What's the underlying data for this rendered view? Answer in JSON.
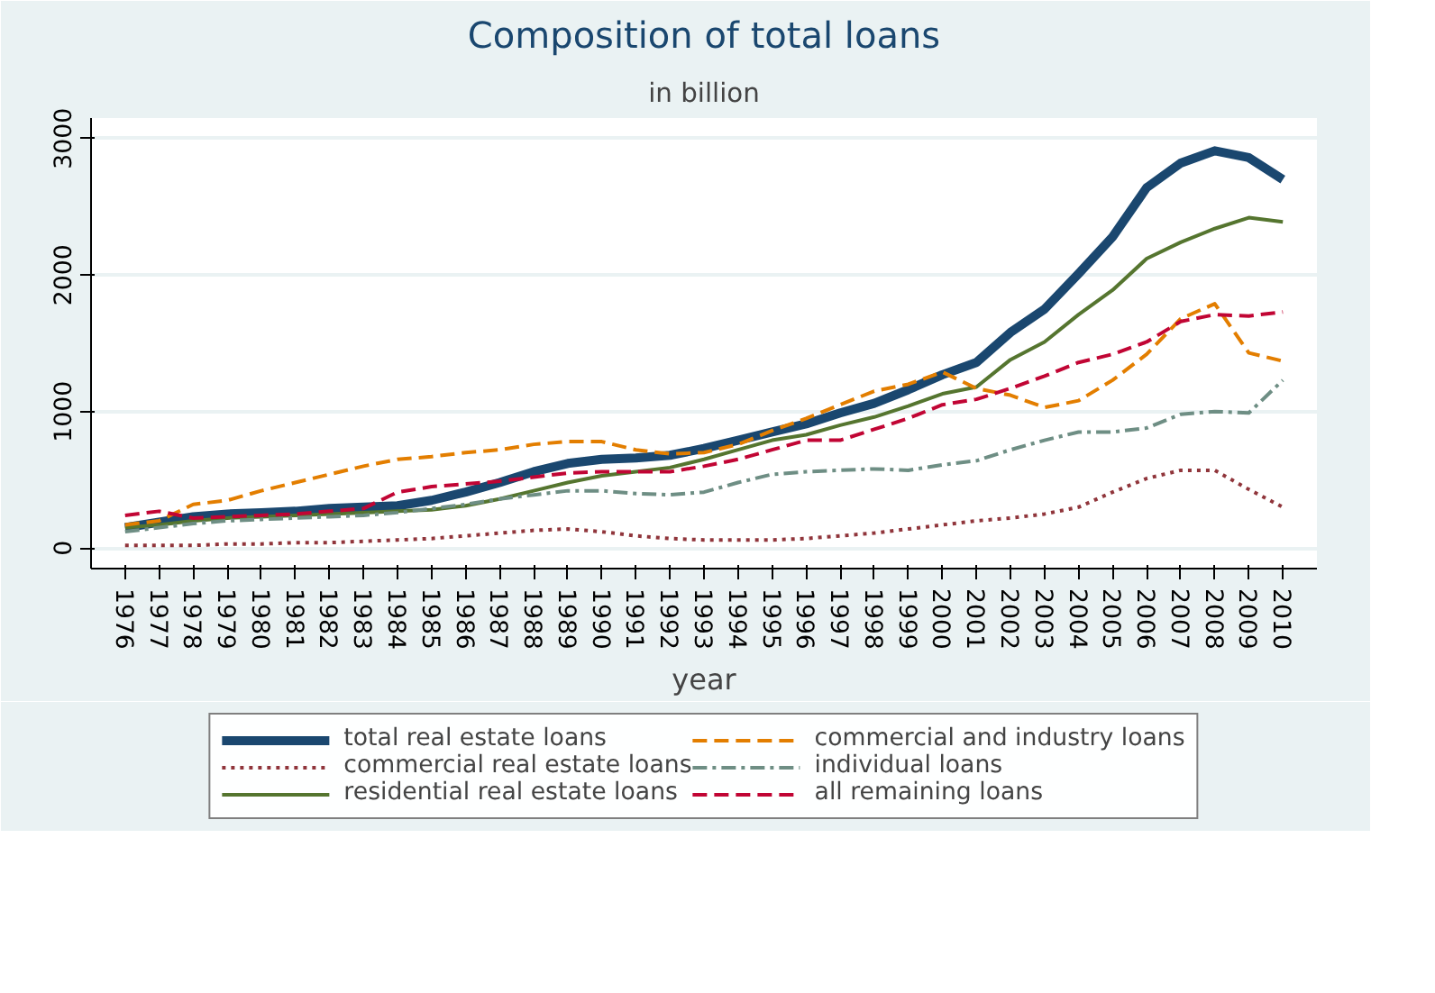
{
  "chart_data": {
    "type": "line",
    "title": "Composition of total loans",
    "subtitle": "in billion",
    "xlabel": "year",
    "x": [
      1976,
      1977,
      1978,
      1979,
      1980,
      1981,
      1982,
      1983,
      1984,
      1985,
      1986,
      1987,
      1988,
      1989,
      1990,
      1991,
      1992,
      1993,
      1994,
      1995,
      1996,
      1997,
      1998,
      1999,
      2000,
      2001,
      2002,
      2003,
      2004,
      2005,
      2006,
      2007,
      2008,
      2009,
      2010
    ],
    "xlim": [
      1975,
      2011
    ],
    "xticks": [
      1976,
      1977,
      1978,
      1979,
      1980,
      1981,
      1982,
      1983,
      1984,
      1985,
      1986,
      1987,
      1988,
      1989,
      1990,
      1991,
      1992,
      1993,
      1994,
      1995,
      1996,
      1997,
      1998,
      1999,
      2000,
      2001,
      2002,
      2003,
      2004,
      2005,
      2006,
      2007,
      2008,
      2009,
      2010
    ],
    "ylim": [
      -150,
      3150
    ],
    "yticks": [
      0,
      1000,
      2000,
      3000
    ],
    "grid": "y",
    "legend": "bottom",
    "series": [
      {
        "name": "total real estate loans",
        "color": "#1a476f",
        "line_style": "solid",
        "values": [
          150,
          190,
          230,
          250,
          260,
          270,
          290,
          300,
          310,
          350,
          410,
          480,
          560,
          620,
          650,
          660,
          680,
          730,
          790,
          850,
          910,
          990,
          1060,
          1160,
          1270,
          1360,
          1580,
          1750,
          2010,
          2280,
          2640,
          2820,
          2910,
          2860,
          2700
        ]
      },
      {
        "name": "commercial real estate loans",
        "color": "#90353b",
        "line_style": "dotted",
        "values": [
          20,
          20,
          20,
          30,
          30,
          40,
          40,
          50,
          60,
          70,
          90,
          110,
          130,
          140,
          120,
          90,
          70,
          60,
          60,
          60,
          70,
          90,
          110,
          140,
          170,
          200,
          220,
          250,
          300,
          410,
          510,
          570,
          570,
          430,
          300
        ]
      },
      {
        "name": "residential real estate loans",
        "color": "#55752f",
        "line_style": "solid",
        "values": [
          150,
          170,
          200,
          220,
          230,
          240,
          250,
          260,
          270,
          280,
          310,
          360,
          420,
          480,
          530,
          560,
          590,
          650,
          720,
          790,
          830,
          900,
          960,
          1040,
          1130,
          1180,
          1380,
          1510,
          1710,
          1890,
          2120,
          2240,
          2340,
          2420,
          2390
        ]
      },
      {
        "name": "commercial and industry loans",
        "color": "#e37e00",
        "line_style": "dashed",
        "values": [
          170,
          200,
          320,
          350,
          420,
          480,
          540,
          600,
          650,
          670,
          700,
          720,
          760,
          780,
          780,
          720,
          690,
          700,
          760,
          860,
          950,
          1050,
          1150,
          1200,
          1290,
          1170,
          1120,
          1030,
          1080,
          1230,
          1420,
          1680,
          1790,
          1430,
          1370
        ]
      },
      {
        "name": "individual loans",
        "color": "#6e8e84",
        "line_style": "dashdot",
        "values": [
          120,
          150,
          180,
          200,
          210,
          220,
          230,
          240,
          260,
          290,
          320,
          360,
          390,
          420,
          420,
          400,
          390,
          410,
          480,
          540,
          560,
          570,
          580,
          570,
          610,
          640,
          720,
          790,
          850,
          850,
          880,
          980,
          1000,
          990,
          1230
        ]
      },
      {
        "name": "all remaining loans",
        "color": "#c10534",
        "line_style": "dashed",
        "values": [
          240,
          270,
          220,
          230,
          240,
          250,
          270,
          290,
          410,
          450,
          470,
          490,
          520,
          550,
          560,
          560,
          560,
          600,
          650,
          720,
          790,
          790,
          870,
          950,
          1050,
          1090,
          1170,
          1260,
          1360,
          1420,
          1510,
          1660,
          1710,
          1700,
          1730
        ]
      }
    ]
  }
}
